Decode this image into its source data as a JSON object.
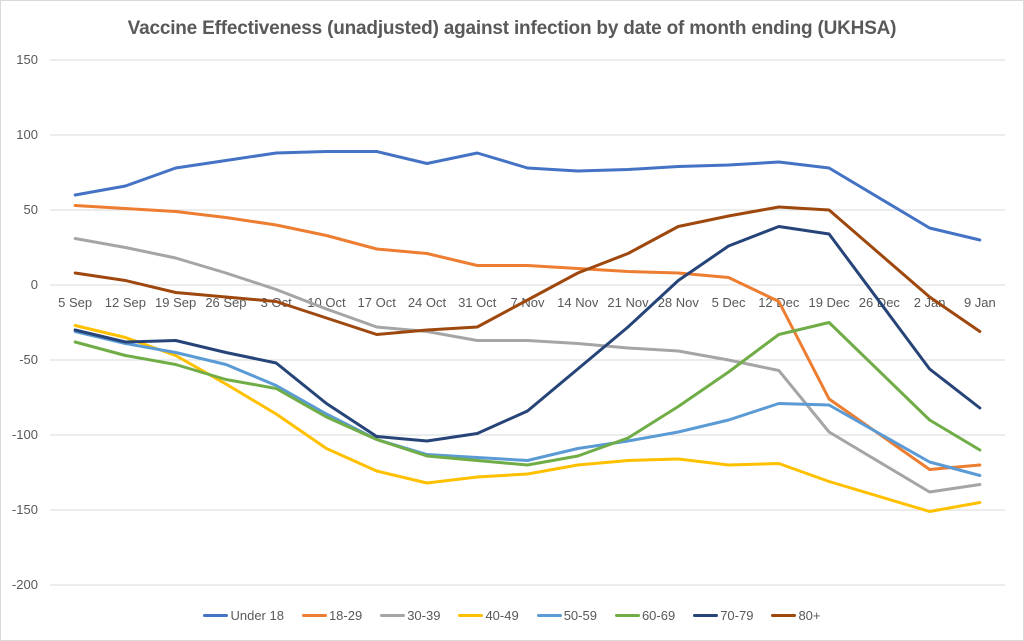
{
  "chart_data": {
    "type": "line",
    "title": "Vaccine Effectiveness (unadjusted) against infection by date of month ending (UKHSA)",
    "xlabel": "",
    "ylabel": "",
    "ylim": [
      -200,
      150
    ],
    "yticks": [
      150,
      100,
      50,
      0,
      -50,
      -100,
      -150,
      -200
    ],
    "grid": true,
    "legend_position": "bottom",
    "categories": [
      "5 Sep",
      "12 Sep",
      "19 Sep",
      "26 Sep",
      "3 Oct",
      "10 Oct",
      "17 Oct",
      "24 Oct",
      "31 Oct",
      "7 Nov",
      "14 Nov",
      "21 Nov",
      "28 Nov",
      "5 Dec",
      "12 Dec",
      "19 Dec",
      "26 Dec",
      "2 Jan",
      "9 Jan"
    ],
    "series": [
      {
        "name": "Under 18",
        "color": "#4472c4",
        "values": [
          60,
          66,
          78,
          83,
          88,
          89,
          89,
          81,
          88,
          78,
          76,
          77,
          79,
          80,
          82,
          78,
          null,
          38,
          30
        ]
      },
      {
        "name": "18-29",
        "color": "#ed7d31",
        "values": [
          53,
          51,
          49,
          45,
          40,
          33,
          24,
          21,
          13,
          13,
          11,
          9,
          8,
          5,
          -11,
          -76,
          null,
          -123,
          -120
        ]
      },
      {
        "name": "30-39",
        "color": "#a5a5a5",
        "values": [
          31,
          25,
          18,
          8,
          -3,
          -16,
          -28,
          -31,
          -37,
          -37,
          -39,
          -42,
          -44,
          -50,
          -57,
          -98,
          null,
          -138,
          -133
        ]
      },
      {
        "name": "40-49",
        "color": "#ffc000",
        "values": [
          -27,
          -35,
          -47,
          -66,
          -86,
          -109,
          -124,
          -132,
          -128,
          -126,
          -120,
          -117,
          -116,
          -120,
          -119,
          -131,
          null,
          -151,
          -145
        ]
      },
      {
        "name": "50-59",
        "color": "#5b9bd5",
        "values": [
          -31,
          -39,
          -45,
          -53,
          -67,
          -86,
          -103,
          -113,
          -115,
          -117,
          -109,
          -104,
          -98,
          -90,
          -79,
          -80,
          null,
          -118,
          -127
        ]
      },
      {
        "name": "60-69",
        "color": "#70ad47",
        "values": [
          -38,
          -47,
          -53,
          -63,
          -69,
          -88,
          -103,
          -114,
          -117,
          -120,
          -114,
          -102,
          -81,
          -58,
          -33,
          -25,
          null,
          -90,
          -110
        ]
      },
      {
        "name": "70-79",
        "color": "#264478",
        "values": [
          -30,
          -38,
          -37,
          -45,
          -52,
          -79,
          -101,
          -104,
          -99,
          -84,
          -56,
          -28,
          3,
          26,
          39,
          34,
          null,
          -56,
          -82
        ]
      },
      {
        "name": "80+",
        "color": "#9e480e",
        "values": [
          8,
          3,
          -5,
          -8,
          -11,
          -22,
          -33,
          -30,
          -28,
          -10,
          8,
          21,
          39,
          46,
          52,
          50,
          null,
          -8,
          -31
        ]
      }
    ]
  }
}
